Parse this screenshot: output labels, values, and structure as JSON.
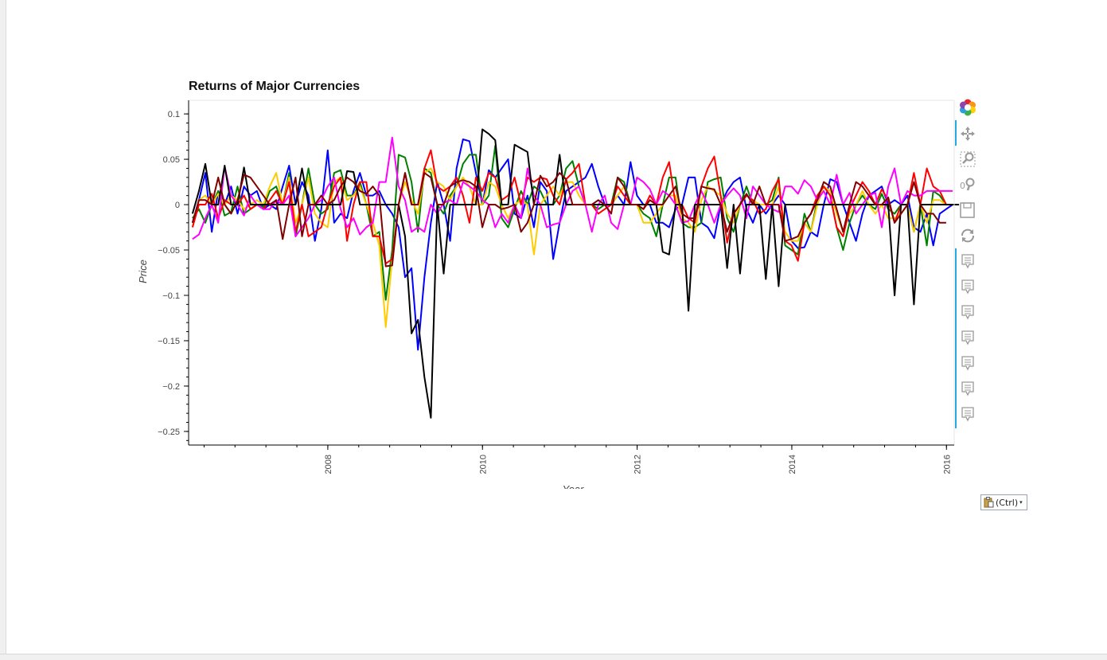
{
  "chart_data": {
    "type": "line",
    "title": "Returns of Major Currencies",
    "xlabel": "Year",
    "ylabel": "Price",
    "x_ticks": [
      "2008",
      "2010",
      "2012",
      "2014",
      "2016"
    ],
    "y_ticks": [
      "0.1",
      "0.05",
      "0",
      "−0.05",
      "−0.1",
      "−0.15",
      "−0.2",
      "−0.25"
    ],
    "xlim": [
      2006.2,
      2016.1
    ],
    "ylim": [
      -0.265,
      0.115
    ],
    "grid": false,
    "x_start": 2006.25,
    "x_step": 0.0833,
    "series": [
      {
        "color": "#0000ff",
        "values": [
          -0.02,
          0.005,
          0.035,
          -0.03,
          0.015,
          0.0,
          0.02,
          -0.01,
          0.02,
          0.01,
          0.015,
          -0.005,
          0.0,
          -0.005,
          0.02,
          0.043,
          0.0,
          0.025,
          0.01,
          -0.04,
          -0.005,
          0.06,
          -0.02,
          -0.01,
          -0.015,
          0.015,
          0.035,
          0.01,
          0.01,
          0.015,
          0.0,
          -0.01,
          -0.025,
          -0.08,
          -0.07,
          -0.16,
          -0.08,
          -0.02,
          0.025,
          0.0,
          -0.04,
          0.04,
          0.072,
          0.07,
          0.035,
          0.0,
          0.038,
          0.03,
          0.04,
          0.05,
          -0.01,
          -0.015,
          0.01,
          -0.025,
          0.025,
          0.015,
          -0.06,
          -0.02,
          0.015,
          0.02,
          0.025,
          0.03,
          0.045,
          0.02,
          0.0,
          0.0,
          0.01,
          0.0,
          0.047,
          0.01,
          0.0,
          0.0,
          -0.02,
          -0.02,
          -0.025,
          -0.005,
          0.0,
          0.03,
          0.03,
          -0.02,
          -0.025,
          -0.037,
          0.0,
          0.015,
          0.025,
          0.03,
          -0.005,
          -0.02,
          0.0,
          -0.01,
          0.0,
          0.01,
          0.0,
          -0.04,
          -0.048,
          -0.047,
          -0.03,
          -0.035,
          0.0,
          0.028,
          0.025,
          0.0,
          -0.02,
          -0.04,
          -0.01,
          0.01,
          0.015,
          0.02,
          0.0,
          0.005,
          0.0,
          0.01,
          -0.025,
          -0.03,
          -0.01,
          -0.045,
          -0.01,
          -0.005,
          0.0
        ]
      },
      {
        "color": "#008000",
        "values": [
          -0.015,
          -0.005,
          -0.02,
          0.0,
          0.015,
          -0.012,
          -0.008,
          0.02,
          -0.01,
          -0.005,
          0.0,
          -0.003,
          0.015,
          0.02,
          0.0,
          0.035,
          -0.035,
          0.0,
          0.04,
          0.0,
          -0.01,
          -0.005,
          0.035,
          0.038,
          0.01,
          0.01,
          0.025,
          0.0,
          -0.035,
          -0.03,
          -0.105,
          -0.05,
          0.055,
          0.052,
          0.025,
          -0.03,
          0.04,
          0.035,
          0.0,
          -0.01,
          0.01,
          0.02,
          0.045,
          0.055,
          0.055,
          0.0,
          0.01,
          0.065,
          -0.015,
          -0.025,
          -0.005,
          0.015,
          0.0,
          0.02,
          0.015,
          0.0,
          0.0,
          0.01,
          0.04,
          0.048,
          0.02,
          0.0,
          0.0,
          -0.005,
          0.0,
          0.0,
          0.03,
          0.025,
          0.0,
          0.0,
          -0.01,
          -0.015,
          -0.035,
          0.0,
          0.03,
          0.03,
          -0.02,
          -0.025,
          -0.025,
          -0.02,
          0.025,
          0.028,
          0.03,
          -0.015,
          -0.03,
          0.0,
          0.02,
          0.0,
          0.0,
          0.0,
          0.005,
          0.03,
          -0.045,
          -0.05,
          -0.055,
          -0.01,
          -0.03,
          0.005,
          0.02,
          0.01,
          -0.025,
          -0.05,
          -0.02,
          0.0,
          0.01,
          0.0,
          -0.005,
          0.012,
          -0.005,
          -0.01,
          0.0,
          0.0,
          -0.03,
          0.0,
          -0.045,
          0.015,
          0.01,
          0.0
        ]
      },
      {
        "color": "#ffcc00",
        "values": [
          -0.025,
          0.005,
          0.01,
          0.0,
          0.012,
          0.0,
          0.01,
          0.005,
          -0.005,
          0.0,
          0.005,
          0.0,
          0.02,
          0.035,
          0.0,
          0.03,
          -0.02,
          0.0,
          0.03,
          -0.01,
          -0.02,
          -0.025,
          0.025,
          0.03,
          0.005,
          0.01,
          0.02,
          0.0,
          -0.02,
          -0.045,
          -0.135,
          -0.06,
          0.0,
          0.025,
          0.005,
          -0.01,
          0.035,
          0.04,
          0.025,
          0.02,
          0.005,
          0.02,
          0.03,
          0.02,
          0.0,
          0.0,
          0.025,
          0.02,
          0.0,
          -0.015,
          0.0,
          0.005,
          0.0,
          -0.055,
          0.0,
          0.01,
          0.02,
          0.01,
          0.025,
          0.025,
          0.01,
          0.0,
          0.0,
          0.0,
          0.0,
          0.0,
          0.01,
          0.02,
          0.0,
          0.0,
          -0.02,
          -0.02,
          -0.01,
          0.0,
          0.01,
          0.01,
          -0.015,
          -0.02,
          -0.03,
          0.005,
          0.02,
          0.015,
          0.01,
          -0.01,
          -0.02,
          0.0,
          0.01,
          0.005,
          0.0,
          0.0,
          0.0,
          0.02,
          -0.03,
          -0.04,
          -0.04,
          -0.02,
          -0.03,
          0.0,
          0.02,
          0.015,
          -0.01,
          -0.03,
          -0.01,
          0.0,
          0.015,
          0.0,
          -0.01,
          0.0,
          -0.015,
          -0.015,
          -0.01,
          0.0,
          -0.03,
          0.0,
          -0.02,
          0.005,
          0.005,
          0.0
        ]
      },
      {
        "color": "#ff0000",
        "values": [
          -0.025,
          0.0,
          0.0,
          0.012,
          -0.015,
          0.005,
          0.0,
          0.0,
          0.01,
          -0.005,
          0.0,
          -0.005,
          0.005,
          0.015,
          0.0,
          0.025,
          -0.03,
          0.0,
          -0.035,
          -0.03,
          -0.025,
          0.0,
          0.02,
          0.03,
          -0.04,
          0.0,
          0.025,
          0.025,
          -0.035,
          -0.035,
          -0.065,
          -0.06,
          0.0,
          0.035,
          0.0,
          0.0,
          0.04,
          0.06,
          0.02,
          0.015,
          0.02,
          0.03,
          0.01,
          -0.02,
          0.03,
          0.015,
          0.035,
          0.03,
          0.005,
          0.01,
          0.03,
          0.0,
          0.03,
          0.025,
          0.03,
          0.028,
          0.01,
          0.0,
          0.028,
          0.035,
          0.045,
          0.0,
          0.0,
          -0.01,
          -0.005,
          0.0,
          0.02,
          0.01,
          0.0,
          0.0,
          -0.005,
          0.01,
          0.0,
          0.03,
          0.047,
          0.0,
          0.0,
          -0.015,
          -0.02,
          0.02,
          0.04,
          0.053,
          0.01,
          -0.042,
          -0.01,
          0.0,
          0.01,
          0.005,
          -0.01,
          -0.005,
          0.015,
          0.028,
          -0.04,
          -0.045,
          -0.062,
          -0.02,
          -0.01,
          0.01,
          0.02,
          0.01,
          -0.025,
          -0.035,
          -0.005,
          0.01,
          0.025,
          0.015,
          0.0,
          0.017,
          0.005,
          -0.02,
          0.0,
          0.0,
          0.035,
          0.0,
          0.04,
          0.02,
          0.015,
          0.0
        ]
      },
      {
        "color": "#ff00ff",
        "values": [
          -0.038,
          -0.033,
          -0.015,
          0.0,
          -0.02,
          0.042,
          0.01,
          0.0,
          -0.012,
          0.01,
          0.0,
          -0.005,
          -0.005,
          0.005,
          0.0,
          0.01,
          -0.035,
          -0.025,
          -0.015,
          0.0,
          0.005,
          0.02,
          0.03,
          -0.005,
          -0.025,
          -0.015,
          -0.033,
          -0.025,
          -0.02,
          0.025,
          0.025,
          0.074,
          0.02,
          0.005,
          -0.03,
          -0.025,
          -0.03,
          0.0,
          -0.01,
          0.002,
          0.005,
          0.0,
          0.025,
          0.02,
          0.015,
          0.005,
          0.0,
          -0.025,
          -0.01,
          -0.02,
          0.0,
          -0.015,
          0.04,
          0.01,
          0.0,
          -0.025,
          -0.022,
          -0.02,
          0.0,
          0.015,
          0.02,
          0.0,
          -0.03,
          0.0,
          0.01,
          -0.02,
          -0.027,
          0.0,
          0.0,
          0.03,
          0.025,
          0.017,
          0.0,
          0.015,
          0.01,
          0.0,
          -0.02,
          -0.018,
          0.0,
          0.015,
          0.0,
          -0.02,
          0.0,
          0.01,
          0.018,
          0.01,
          -0.015,
          0.02,
          0.01,
          0.0,
          -0.005,
          -0.008,
          0.02,
          0.02,
          0.012,
          0.027,
          0.02,
          0.005,
          0.015,
          0.0,
          0.033,
          0.0,
          0.013,
          -0.01,
          0.0,
          0.01,
          0.013,
          -0.025,
          0.02,
          0.04,
          0.0,
          0.015,
          0.01,
          0.01,
          0.015,
          0.015,
          0.015,
          0.015,
          0.015
        ]
      },
      {
        "color": "#000000",
        "values": [
          -0.01,
          0.015,
          0.045,
          0.0,
          0.0,
          0.043,
          0.0,
          0.0,
          0.041,
          0.0,
          0.0,
          0.0,
          0.0,
          0.0,
          0.0,
          0.0,
          0.0,
          0.04,
          0.0,
          0.0,
          0.0,
          0.0,
          0.0,
          0.0,
          0.037,
          0.036,
          0.0,
          0.0,
          0.0,
          0.0,
          0.0,
          0.0,
          0.0,
          -0.035,
          -0.142,
          -0.127,
          -0.19,
          -0.235,
          0.0,
          -0.076,
          0.0,
          0.0,
          0.0,
          0.0,
          0.0,
          0.083,
          0.078,
          0.071,
          0.0,
          0.0,
          0.066,
          0.062,
          0.058,
          0.0,
          0.0,
          0.0,
          0.0,
          0.055,
          0.0,
          0.0,
          0.0,
          0.0,
          0.0,
          0.0,
          0.0,
          0.0,
          0.0,
          0.0,
          0.0,
          0.0,
          0.0,
          0.0,
          0.0,
          -0.052,
          -0.055,
          0.0,
          0.0,
          -0.117,
          0.0,
          0.0,
          0.0,
          0.0,
          0.0,
          -0.07,
          0.0,
          -0.076,
          0.0,
          0.0,
          0.0,
          -0.082,
          0.0,
          -0.09,
          0.0,
          0.0,
          0.0,
          0.0,
          0.0,
          0.0,
          0.0,
          0.0,
          0.0,
          0.0,
          0.0,
          0.0,
          0.0,
          0.0,
          0.0,
          0.0,
          0.0,
          -0.1,
          0.0,
          0.0,
          -0.11,
          0.0,
          0.0,
          0.0,
          0.0,
          0.0,
          0.0,
          0.0
        ]
      },
      {
        "color": "#800000",
        "values": [
          -0.02,
          0.005,
          0.005,
          0.0,
          0.03,
          0.0,
          -0.01,
          0.005,
          0.033,
          0.03,
          0.02,
          0.01,
          0.0,
          0.005,
          -0.038,
          0.0,
          0.03,
          -0.035,
          0.0,
          0.0,
          0.01,
          0.0,
          0.005,
          0.02,
          0.03,
          0.025,
          0.015,
          0.012,
          0.02,
          0.01,
          -0.068,
          -0.067,
          0.0,
          0.035,
          0.0,
          0.0,
          0.035,
          0.03,
          0.0,
          0.0,
          0.02,
          0.025,
          0.027,
          0.025,
          0.02,
          -0.025,
          0.0,
          0.0,
          -0.005,
          -0.003,
          0.0,
          -0.03,
          -0.02,
          0.0,
          0.032,
          0.02,
          0.025,
          0.035,
          0.028,
          0.0,
          0.0,
          0.0,
          0.0,
          0.005,
          0.0,
          -0.01,
          0.03,
          0.02,
          0.0,
          0.0,
          -0.005,
          0.005,
          0.0,
          0.0,
          0.01,
          0.02,
          -0.01,
          -0.015,
          -0.015,
          0.02,
          0.018,
          0.017,
          0.0,
          -0.03,
          -0.01,
          0.0,
          0.012,
          0.0,
          0.02,
          0.0,
          0.0,
          0.0,
          -0.04,
          -0.038,
          -0.035,
          -0.02,
          -0.01,
          0.005,
          0.025,
          0.02,
          -0.005,
          -0.03,
          0.0,
          0.025,
          0.02,
          0.01,
          0.0,
          0.0,
          0.008,
          -0.02,
          -0.01,
          0.0,
          0.025,
          0.0,
          -0.01,
          -0.01,
          -0.02,
          -0.02
        ]
      }
    ]
  },
  "paste_options": {
    "label": "(Ctrl)",
    "arrow": "▾"
  },
  "toolbar": {
    "tools": [
      {
        "name": "bokeh-logo-icon"
      },
      {
        "name": "pan-icon"
      },
      {
        "name": "box-zoom-icon"
      },
      {
        "name": "wheel-zoom-icon"
      },
      {
        "name": "save-icon"
      },
      {
        "name": "reset-icon"
      },
      {
        "name": "hover-icon"
      },
      {
        "name": "hover-icon"
      },
      {
        "name": "hover-icon"
      },
      {
        "name": "hover-icon"
      },
      {
        "name": "hover-icon"
      },
      {
        "name": "hover-icon"
      },
      {
        "name": "hover-icon"
      }
    ]
  }
}
